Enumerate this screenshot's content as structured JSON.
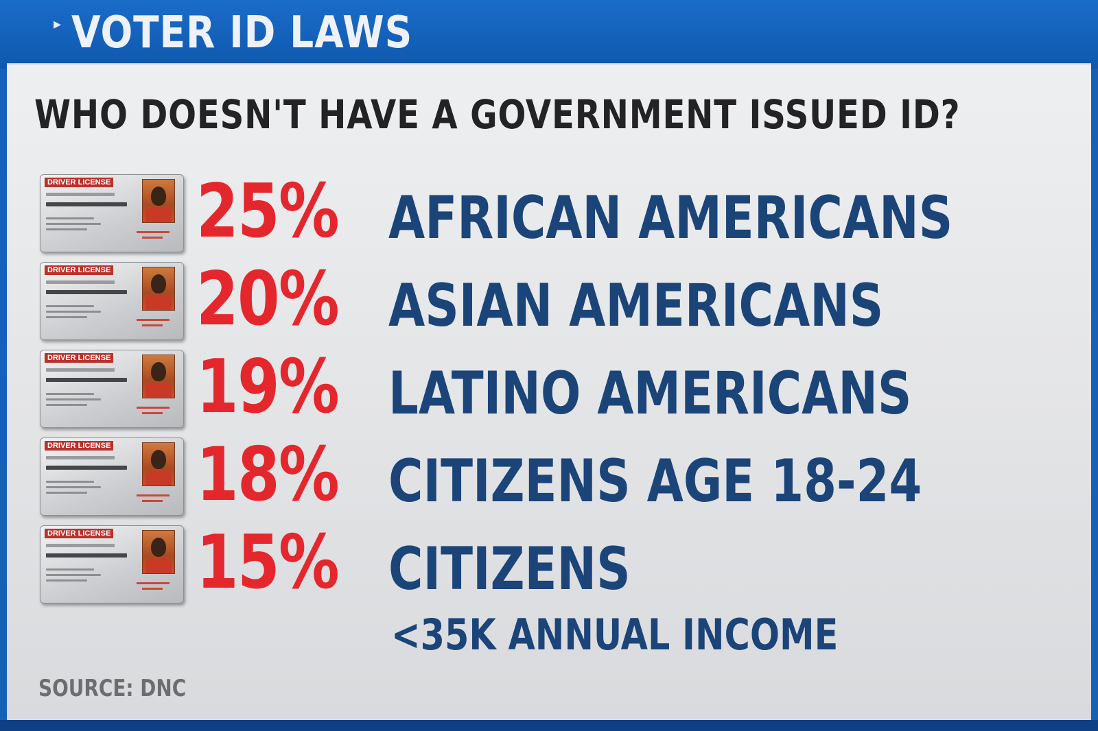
{
  "header": {
    "title": "VOTER ID LAWS",
    "marker_icon": "triangle-marker-icon"
  },
  "question": "WHO DOESN'T HAVE A GOVERNMENT ISSUED ID?",
  "card_label": "DRIVER LICENSE",
  "rows": [
    {
      "percent": "25%",
      "group": "AFRICAN AMERICANS"
    },
    {
      "percent": "20%",
      "group": "ASIAN AMERICANS"
    },
    {
      "percent": "19%",
      "group": "LATINO AMERICANS"
    },
    {
      "percent": "18%",
      "group": "CITIZENS AGE 18-24"
    },
    {
      "percent": "15%",
      "group": "CITIZENS",
      "subgroup": "<35K ANNUAL INCOME"
    }
  ],
  "source": "SOURCE: DNC",
  "colors": {
    "banner": "#1560b8",
    "percent": "#e4272c",
    "label": "#1b4478",
    "question": "#232325"
  }
}
